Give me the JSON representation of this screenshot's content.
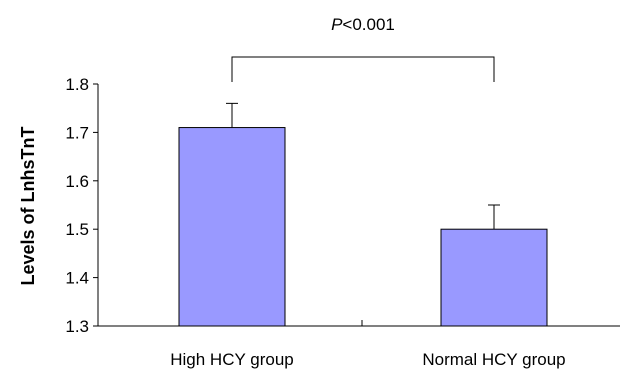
{
  "chart_data": {
    "type": "bar",
    "categories": [
      "High HCY group",
      "Normal HCY group"
    ],
    "values": [
      1.71,
      1.5
    ],
    "error_upper": [
      1.76,
      1.55
    ],
    "ylabel": "Levels of LnhsTnT",
    "ylim": [
      1.3,
      1.8
    ],
    "yticks": [
      "1.3",
      "1.4",
      "1.5",
      "1.6",
      "1.7",
      "1.8"
    ],
    "grid": false,
    "bar_color": "#9999ff",
    "annotation": {
      "p_label": "P",
      "p_rest": "<0.001"
    }
  }
}
